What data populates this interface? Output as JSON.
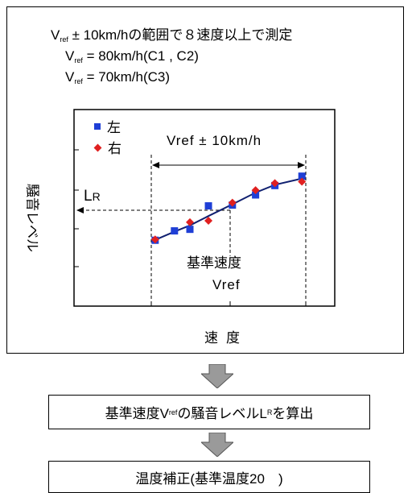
{
  "conditions": {
    "line1_pre": "V",
    "line1_sub": "ref",
    "line1_post": " ± 10km/hの範囲で８速度以上で測定",
    "line2_pre": "V",
    "line2_sub": "ref",
    "line2_post": " = 80km/h(C1 , C2)",
    "line3_pre": "V",
    "line3_sub": "ref",
    "line3_post": " = 70km/h(C3)"
  },
  "chart": {
    "ylabel": "騒音レベル",
    "xlabel": "速度",
    "legend": [
      {
        "label": "左",
        "color": "#1f3fd6",
        "marker": "square"
      },
      {
        "label": "右",
        "color": "#e02020",
        "marker": "diamond"
      }
    ],
    "range_label": "Vref ± 10km/h",
    "lr_label_main": "L",
    "lr_label_sub": "R",
    "ref_speed_label": "基準速度",
    "ref_speed_sub": "Vref"
  },
  "chart_data": {
    "type": "scatter",
    "xlabel": "速度",
    "ylabel": "騒音レベル",
    "series": [
      {
        "name": "左",
        "color": "#1f3fd6",
        "marker": "square",
        "x": [
          -9.5,
          -7,
          -5,
          -2.6,
          0.5,
          3.5,
          6,
          9.5
        ],
        "y": [
          0.8,
          2.0,
          2.2,
          5.2,
          5.3,
          6.6,
          7.8,
          9.0
        ]
      },
      {
        "name": "右",
        "color": "#e02020",
        "marker": "diamond",
        "x": [
          -9.5,
          -5,
          -2.6,
          0.5,
          3.5,
          6,
          9.5
        ],
        "y": [
          0.9,
          3.1,
          3.3,
          5.6,
          7.2,
          8.1,
          8.3
        ]
      }
    ],
    "fit_line": {
      "color": "#102070"
    }
  },
  "flow": {
    "step1_pre": "基準速度V",
    "step1_sub": "ref",
    "step1_mid": "の騒音レベルL",
    "step1_sub2": "R",
    "step1_post": "を算出",
    "step2": "温度補正(基準温度20　)"
  }
}
